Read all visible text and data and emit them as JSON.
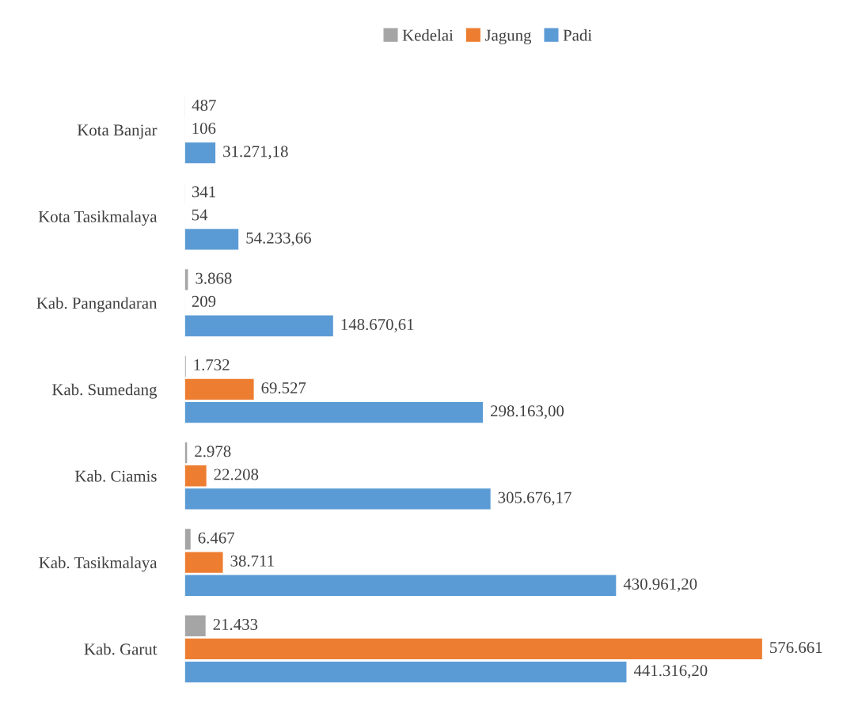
{
  "chart_data": {
    "type": "bar",
    "orientation": "horizontal",
    "legend": "top",
    "grid": false,
    "tick_labels": "y",
    "categories": [
      "Kota Banjar",
      "Kota Tasikmalaya",
      "Kab. Pangandaran",
      "Kab. Sumedang",
      "Kab. Ciamis",
      "Kab. Tasikmalaya",
      "Kab. Garut"
    ],
    "series": [
      {
        "name": "Kedelai",
        "color": "#a5a5a5",
        "values": [
          487,
          341,
          3868,
          1732,
          2978,
          6467,
          21433
        ],
        "value_labels": [
          "487",
          "341",
          "3.868",
          "1.732",
          "2.978",
          "6.467",
          "21.433"
        ]
      },
      {
        "name": "Jagung",
        "color": "#ed7d31",
        "values": [
          106,
          54,
          209,
          69527,
          22208,
          38711,
          576661
        ],
        "value_labels": [
          "106",
          "54",
          "209",
          "69.527",
          "22.208",
          "38.711",
          "576.661"
        ]
      },
      {
        "name": "Padi",
        "color": "#5b9bd5",
        "values": [
          31271.18,
          54233.66,
          148670.61,
          298163.0,
          305676.17,
          430961.2,
          441316.2
        ],
        "value_labels": [
          "31.271,18",
          "54.233,66",
          "148.670,61",
          "298.163,00",
          "305.676,17",
          "430.961,20",
          "441.316,20"
        ]
      }
    ]
  }
}
